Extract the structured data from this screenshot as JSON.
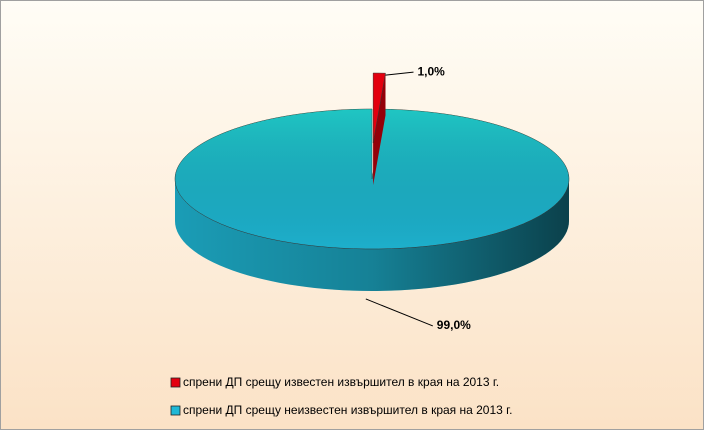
{
  "chart_data": {
    "type": "pie",
    "categories": [
      "спрени ДП срещу известен извършител в края на 2013 г.",
      "спрени ДП срещу неизвестен извършител в края на 2013 г."
    ],
    "values": [
      1.0,
      99.0
    ],
    "value_labels": [
      "1,0%",
      "99,0%"
    ],
    "colors": [
      "#e3000f",
      "#1fb8d6"
    ],
    "legend": "bottom"
  }
}
